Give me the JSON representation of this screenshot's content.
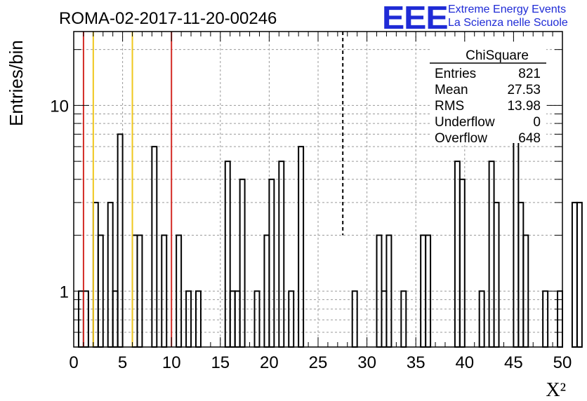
{
  "title": "ROMA-02-2017-11-20-00246",
  "logo": {
    "mark": "EEE",
    "line1": "Extreme Energy Events",
    "line2": "La Scienza nelle Scuole"
  },
  "stats": {
    "name": "ChiSquare",
    "rows": [
      {
        "label": "Entries",
        "value": "821"
      },
      {
        "label": "Mean",
        "value": "27.53"
      },
      {
        "label": "RMS",
        "value": "13.98"
      },
      {
        "label": "Underflow",
        "value": "0"
      },
      {
        "label": "Overflow",
        "value": "648"
      }
    ]
  },
  "chart_data": {
    "type": "bar",
    "histogram": true,
    "xlabel": "X²",
    "ylabel": "Entries/bin",
    "xlim": [
      0,
      50
    ],
    "ylim": [
      0.5,
      25
    ],
    "yscale": "log",
    "bin_width": 0.5,
    "grid": true,
    "x_ticks": [
      0,
      5,
      10,
      15,
      20,
      25,
      30,
      35,
      40,
      45,
      50
    ],
    "y_ticks": [
      1,
      10
    ],
    "values": [
      0,
      1,
      1,
      0,
      3,
      2,
      0,
      3,
      1,
      7,
      0,
      0,
      2,
      2,
      0,
      0,
      6,
      0,
      2,
      0,
      0,
      2,
      0,
      1,
      0,
      1,
      0,
      0,
      0,
      0,
      0,
      5,
      1,
      1,
      4,
      0,
      0,
      1,
      0,
      2,
      4,
      0,
      5,
      0,
      1,
      0,
      6,
      0,
      0,
      0,
      0,
      0,
      0,
      0,
      0,
      0,
      0,
      1,
      0,
      0,
      0,
      0,
      2,
      1,
      2,
      0,
      0,
      1,
      0,
      0,
      0,
      2,
      2,
      0,
      0,
      0,
      0,
      0,
      5,
      4,
      0,
      0,
      0,
      1,
      0,
      5,
      3,
      0,
      0,
      0,
      8,
      3,
      2,
      0,
      0,
      0,
      1,
      0,
      0,
      1,
      0,
      0,
      3,
      3,
      0,
      0,
      0,
      1,
      3,
      2,
      2,
      4,
      5,
      2,
      8,
      0,
      0,
      3,
      3,
      3,
      4,
      5,
      0,
      0,
      1,
      0,
      0,
      0,
      0,
      0,
      1,
      7,
      1,
      0,
      0,
      0,
      3,
      3,
      3,
      0,
      7
    ],
    "vertical_lines": [
      {
        "x": 1,
        "color": "#d32a24",
        "style": "solid"
      },
      {
        "x": 2,
        "color": "#efc71d",
        "style": "solid"
      },
      {
        "x": 6,
        "color": "#efc71d",
        "style": "solid"
      },
      {
        "x": 10,
        "color": "#d32a24",
        "style": "solid"
      },
      {
        "x": 27.53,
        "color": "#000000",
        "style": "dashed"
      }
    ]
  }
}
